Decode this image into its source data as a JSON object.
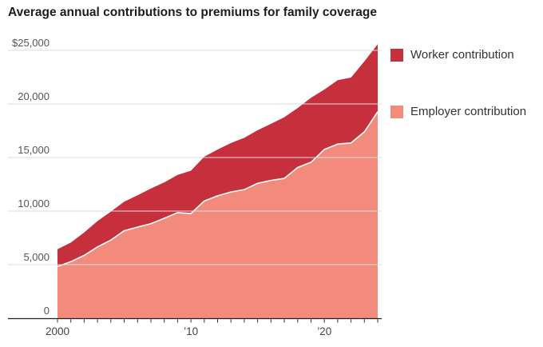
{
  "title": "Average annual contributions to premiums for family coverage",
  "legend": {
    "items": [
      {
        "label": "Worker contribution",
        "color": "#c6303c"
      },
      {
        "label": "Employer contribution",
        "color": "#f28b7b"
      }
    ]
  },
  "chart_data": {
    "type": "area",
    "stacked": true,
    "title": "Average annual contributions to premiums for family coverage",
    "x": [
      2000,
      2001,
      2002,
      2003,
      2004,
      2005,
      2006,
      2007,
      2008,
      2009,
      2010,
      2011,
      2012,
      2013,
      2014,
      2015,
      2016,
      2017,
      2018,
      2019,
      2020,
      2021,
      2022,
      2023,
      2024
    ],
    "series": [
      {
        "name": "Employer contribution",
        "color": "#f28b7b",
        "values": [
          4819,
          5274,
          5866,
          6656,
          7289,
          8167,
          8508,
          8824,
          9325,
          9860,
          9773,
          10944,
          11429,
          11786,
          12011,
          12591,
          12865,
          13049,
          14069,
          14561,
          15754,
          16253,
          16357,
          17393,
          19276
        ]
      },
      {
        "name": "Worker contribution",
        "color": "#c6303c",
        "values": [
          1619,
          1787,
          2137,
          2412,
          2661,
          2713,
          2973,
          3281,
          3354,
          3515,
          3997,
          4129,
          4316,
          4565,
          4823,
          4955,
          5277,
          5714,
          5547,
          6015,
          5588,
          5969,
          6106,
          6575,
          6296
        ]
      }
    ],
    "y_ticks": [
      {
        "value": 0,
        "label": "0"
      },
      {
        "value": 5000,
        "label": "5,000"
      },
      {
        "value": 10000,
        "label": "10,000"
      },
      {
        "value": 15000,
        "label": "15,000"
      },
      {
        "value": 20000,
        "label": "20,000"
      },
      {
        "value": 25000,
        "label": "$25,000"
      }
    ],
    "x_ticks": [
      {
        "year": 2000,
        "label": "2000"
      },
      {
        "year": 2010,
        "label": "’10"
      },
      {
        "year": 2020,
        "label": "’20"
      }
    ],
    "xlim": [
      2000,
      2024
    ],
    "ylim": [
      0,
      25000
    ],
    "grid": true,
    "legend_position": "right",
    "xlabel": "",
    "ylabel": "",
    "colors": {
      "axis": "#222222",
      "tick": "#333333",
      "grid": "#dcdcdc",
      "y_tick_label": "#555555",
      "x_tick_label": "#444444",
      "separator": "#ffffff"
    }
  }
}
